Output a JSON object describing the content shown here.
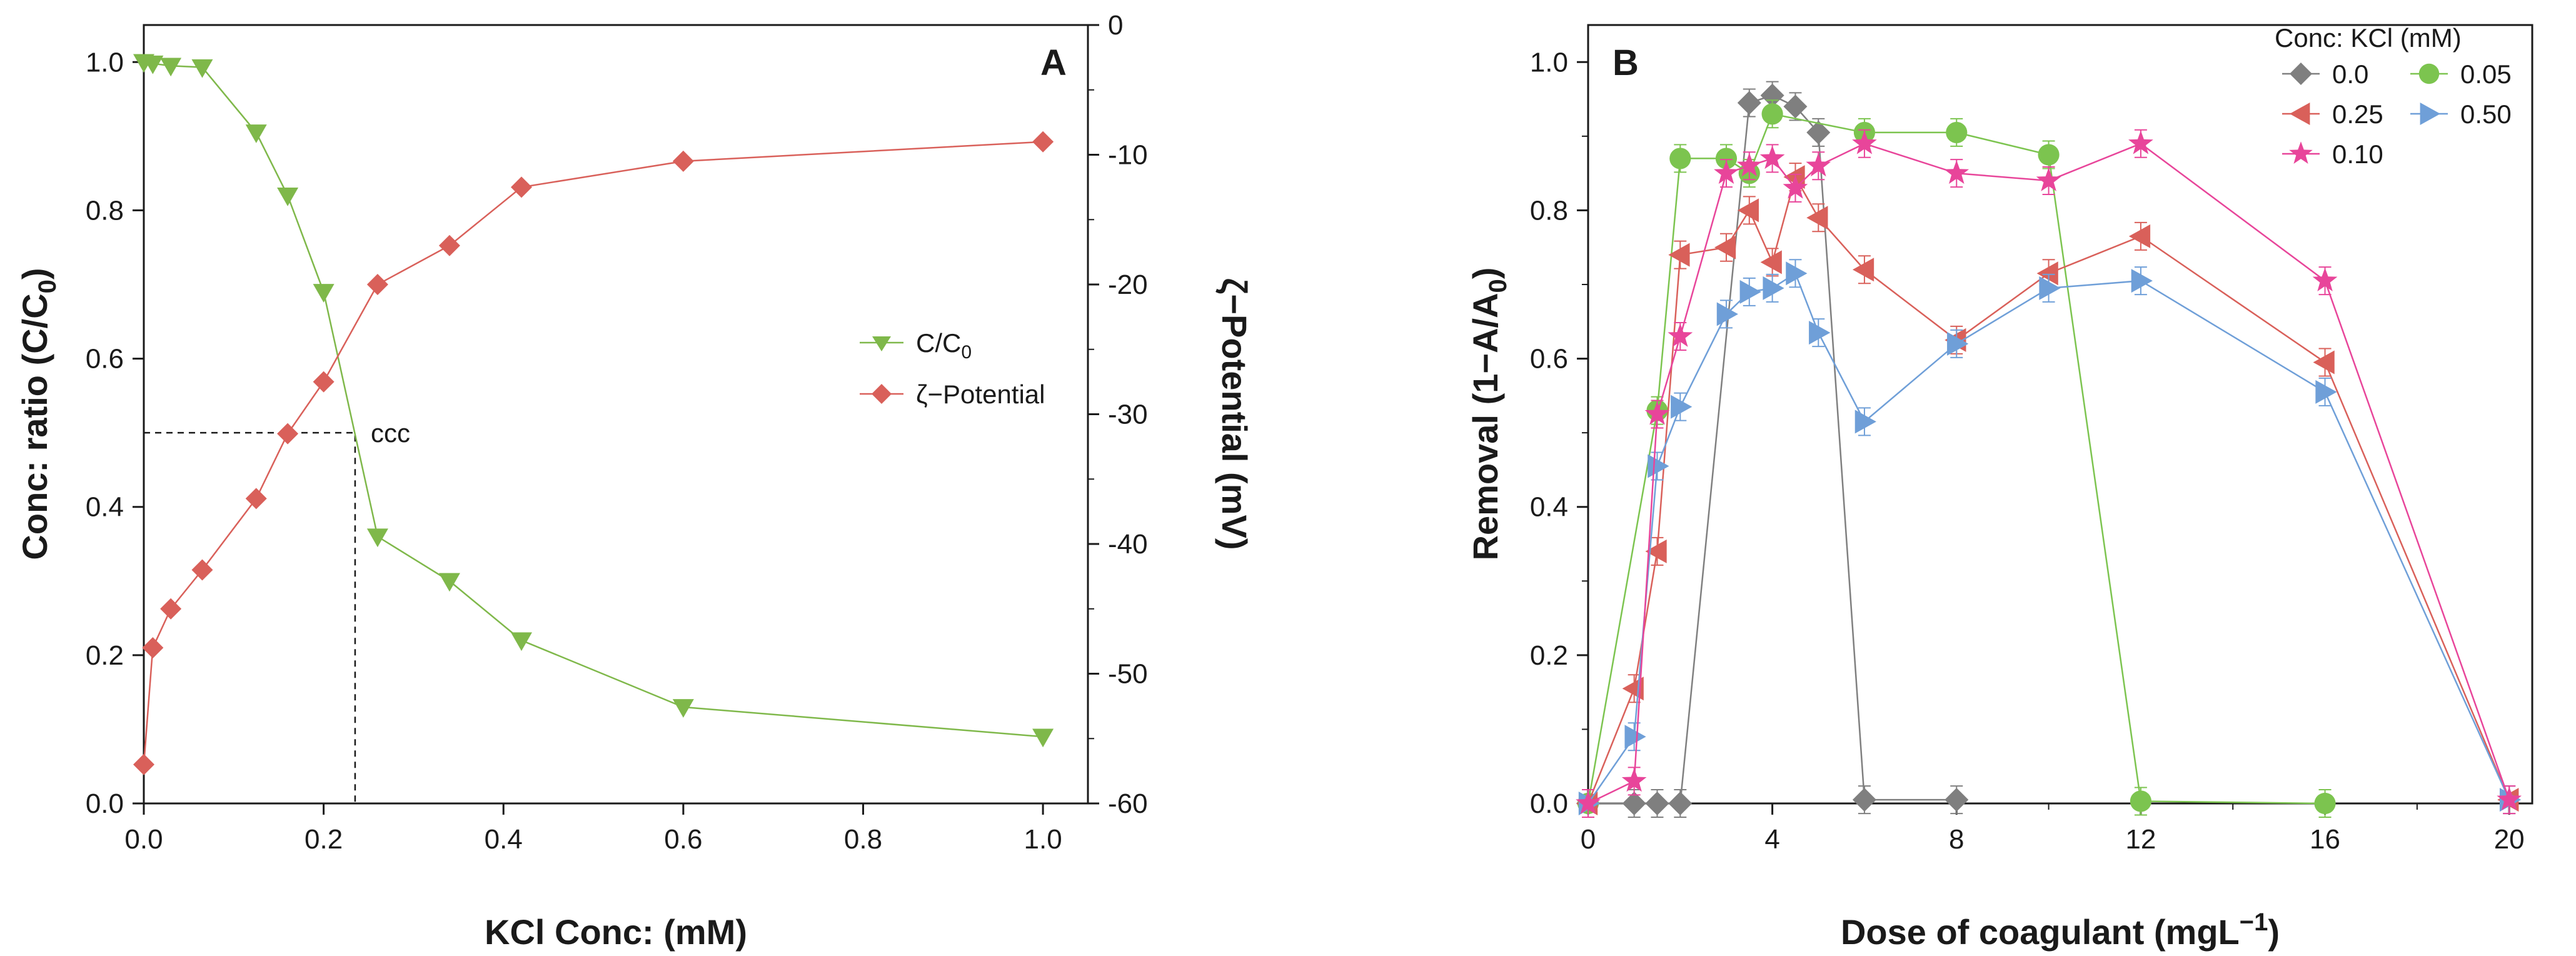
{
  "chart_data": [
    {
      "type": "line",
      "panel_label": "A",
      "xlabel": "KCl Conc: (mM)",
      "ylabel_left_main": "Conc: ratio (C/C",
      "ylabel_left_sub": "0",
      "ylabel_left_tail": ")",
      "ylabel_right": "ζ−Potential (mV)",
      "xlim": [
        0,
        1.05
      ],
      "ylim_left": [
        0,
        1.05
      ],
      "ylim_right": [
        -60,
        0
      ],
      "x_ticks": [
        "0.0",
        "0.2",
        "0.4",
        "0.6",
        "0.8",
        "1.0"
      ],
      "y_left_ticks": [
        "0.0",
        "0.2",
        "0.4",
        "0.6",
        "0.8",
        "1.0"
      ],
      "y_right_ticks": [
        "0",
        "-10",
        "-20",
        "-30",
        "-40",
        "-50",
        "-60"
      ],
      "legend_position": "right",
      "series": [
        {
          "name_main": "C/C",
          "name_sub": "0",
          "axis": "left",
          "marker": "triangle-down",
          "color": "#7fb84a",
          "x": [
            0.0,
            0.01,
            0.03,
            0.065,
            0.125,
            0.16,
            0.2,
            0.26,
            0.34,
            0.42,
            0.6,
            1.0
          ],
          "y": [
            1.0,
            0.998,
            0.995,
            0.993,
            0.905,
            0.82,
            0.69,
            0.36,
            0.3,
            0.22,
            0.13,
            0.09
          ]
        },
        {
          "name": "ζ−Potential",
          "axis": "right",
          "marker": "diamond",
          "color": "#d9605a",
          "x": [
            0.0,
            0.01,
            0.03,
            0.065,
            0.125,
            0.16,
            0.2,
            0.26,
            0.34,
            0.42,
            0.6,
            1.0
          ],
          "y": [
            -57,
            -48,
            -45,
            -42,
            -36.5,
            -31.5,
            -27.5,
            -20,
            -17,
            -12.5,
            -10.5,
            -9
          ]
        }
      ],
      "annotation": {
        "text": "ccc",
        "x": 0.235,
        "y": 0.5
      }
    },
    {
      "type": "line",
      "panel_label": "B",
      "xlabel_main": "Dose of coagulant (mgL",
      "xlabel_sup": "−1",
      "xlabel_tail": ")",
      "ylabel_main": "Removal (1−A/A",
      "ylabel_sub": "0",
      "ylabel_tail": ")",
      "xlim": [
        0,
        20.5
      ],
      "ylim": [
        0,
        1.05
      ],
      "x_ticks": [
        "0",
        "4",
        "8",
        "12",
        "16",
        "20"
      ],
      "y_ticks": [
        "0.0",
        "0.2",
        "0.4",
        "0.6",
        "0.8",
        "1.0"
      ],
      "legend_title": "Conc: KCl (mM)",
      "legend_position": "top-right",
      "series": [
        {
          "name": "0.0",
          "marker": "diamond",
          "color": "#7f7f7f",
          "x": [
            0,
            1,
            1.5,
            2,
            3.5,
            4,
            4.5,
            5,
            6,
            8
          ],
          "y": [
            0.0,
            0.0,
            0.0,
            0.0,
            0.945,
            0.955,
            0.94,
            0.905,
            0.005,
            0.005
          ]
        },
        {
          "name": "0.05",
          "marker": "circle",
          "color": "#7cc44f",
          "x": [
            0,
            1.5,
            2,
            3,
            3.5,
            4,
            6,
            8,
            10,
            12,
            16
          ],
          "y": [
            0.0,
            0.53,
            0.87,
            0.87,
            0.85,
            0.93,
            0.905,
            0.905,
            0.875,
            0.003,
            0.0
          ]
        },
        {
          "name": "0.25",
          "marker": "triangle-left",
          "color": "#d9605a",
          "x": [
            0,
            1,
            1.5,
            2,
            3,
            3.5,
            4,
            4.5,
            5,
            6,
            8,
            10,
            12,
            16,
            20
          ],
          "y": [
            0.0,
            0.155,
            0.34,
            0.74,
            0.75,
            0.8,
            0.73,
            0.845,
            0.79,
            0.72,
            0.625,
            0.715,
            0.765,
            0.595,
            0.005
          ]
        },
        {
          "name": "0.50",
          "marker": "triangle-right",
          "color": "#6f9fd8",
          "x": [
            0,
            1,
            1.5,
            2,
            3,
            3.5,
            4,
            4.5,
            5,
            6,
            8,
            10,
            12,
            16,
            20
          ],
          "y": [
            0.0,
            0.09,
            0.455,
            0.535,
            0.66,
            0.69,
            0.695,
            0.715,
            0.635,
            0.515,
            0.62,
            0.695,
            0.705,
            0.555,
            0.005
          ]
        },
        {
          "name": "0.10",
          "marker": "star",
          "color": "#e8459a",
          "x": [
            0,
            1,
            1.5,
            2,
            3,
            3.5,
            4,
            4.5,
            5,
            6,
            8,
            10,
            12,
            16,
            20
          ],
          "y": [
            0.0,
            0.03,
            0.525,
            0.63,
            0.85,
            0.86,
            0.87,
            0.83,
            0.86,
            0.89,
            0.85,
            0.84,
            0.89,
            0.705,
            0.005
          ]
        }
      ]
    }
  ]
}
